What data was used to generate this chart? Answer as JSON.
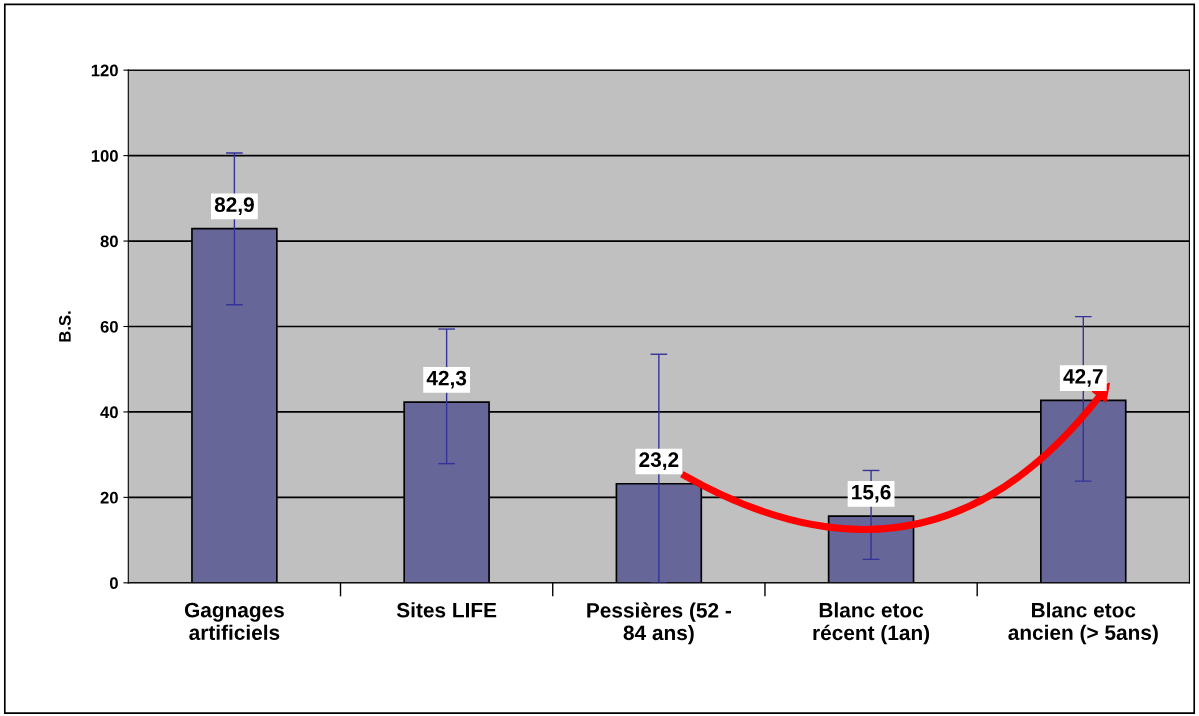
{
  "chart_data": {
    "type": "bar",
    "ylabel": "B.S.",
    "categories": [
      "Gagnages\nartificiels",
      "Sites LIFE",
      "Pessières (52 -\n84 ans)",
      "Blanc etoc\nrécent (1an)",
      "Blanc etoc\nancien (> 5ans)"
    ],
    "values": [
      82.9,
      42.3,
      23.2,
      15.6,
      42.7
    ],
    "value_labels": [
      "82,9",
      "42,3",
      "23,2",
      "15,6",
      "42,7"
    ],
    "errors": [
      [
        65.1,
        100.6
      ],
      [
        27.9,
        59.4
      ],
      [
        0,
        53.5
      ],
      [
        5.5,
        26.3
      ],
      [
        23.8,
        62.3
      ]
    ],
    "color": "#666699",
    "ylim": [
      0,
      120
    ],
    "yticks": [
      0,
      20,
      40,
      60,
      80,
      100,
      120
    ],
    "grid": "y"
  }
}
